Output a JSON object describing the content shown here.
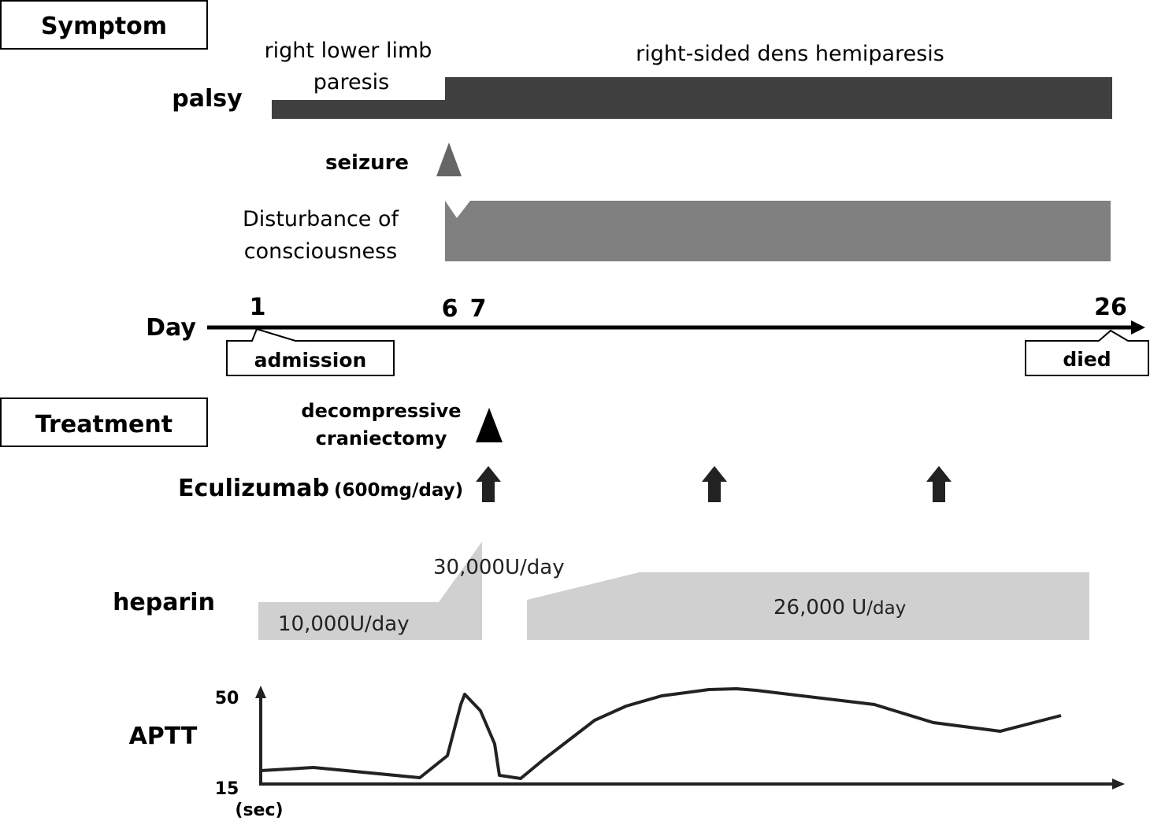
{
  "sections": {
    "symptom": "Symptom",
    "treatment": "Treatment"
  },
  "symptoms": {
    "palsy_label": "palsy",
    "palsy_phase1_line1": "right lower limb",
    "palsy_phase1_line2": "paresis",
    "palsy_phase2": "right-sided dens hemiparesis",
    "seizure_label": "seizure",
    "consciousness_line1": "Disturbance of",
    "consciousness_line2": "consciousness"
  },
  "timeline": {
    "label": "Day",
    "ticks": [
      "1",
      "6",
      "7",
      "26"
    ],
    "admission": "admission",
    "died": "died"
  },
  "treatments": {
    "craniectomy_line1": "decompressive",
    "craniectomy_line2": "craniectomy",
    "eculizumab": "Eculizumab",
    "eculizumab_dose": "(600mg/day)",
    "heparin_label": "heparin",
    "heparin_dose1": "10,000U/day",
    "heparin_dose2": "30,000U/day",
    "heparin_dose3_num": "26,000 U",
    "heparin_dose3_unit": "/day"
  },
  "aptt": {
    "label": "APTT",
    "y_max": "50",
    "y_min": "15",
    "unit": "(sec)"
  },
  "colors": {
    "palsy": "#404040",
    "seizure": "#666666",
    "consciousness": "#808080",
    "heparin": "#d0d0d0",
    "line": "#222222"
  }
}
